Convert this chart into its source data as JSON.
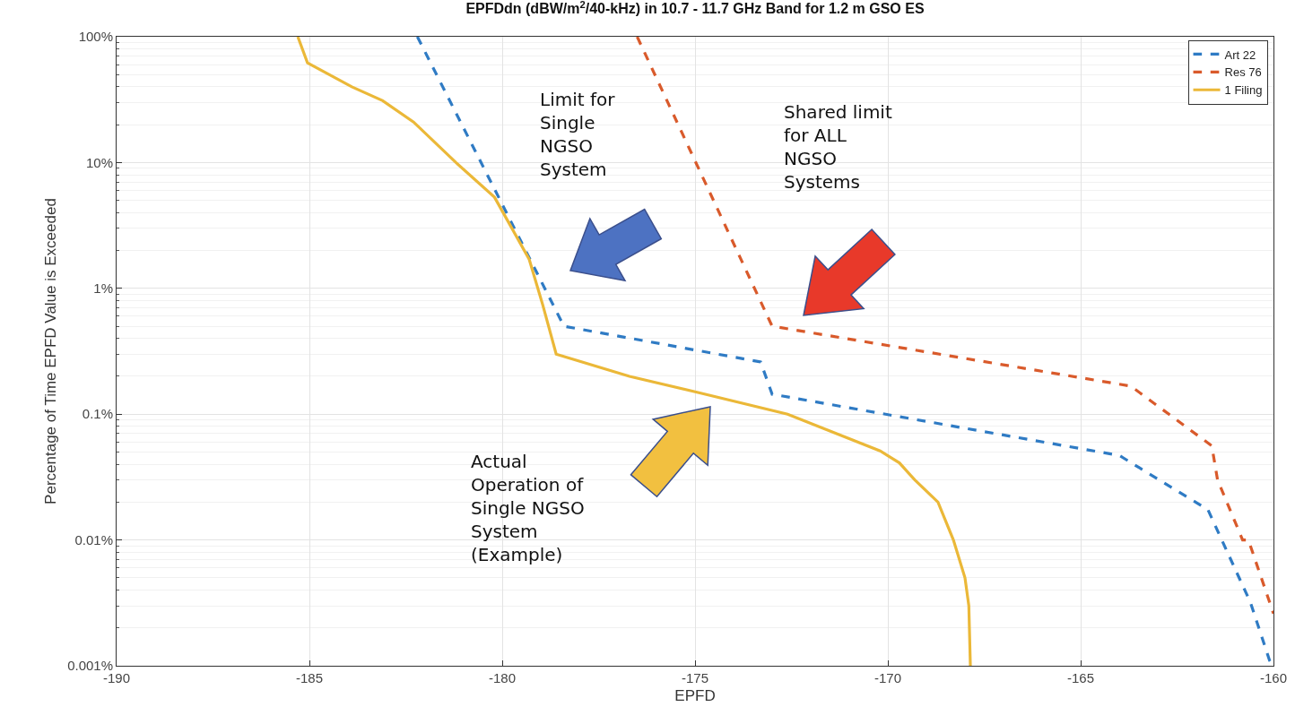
{
  "chart_data": {
    "type": "line",
    "title": "EPFDdn (dBW/m$^{2}$/40-kHz) in 10.7 - 11.7 GHz Band for 1.2 m GSO ES",
    "xlabel": "EPFD",
    "ylabel": "Percentage of Time EPFD Value is Exceeded",
    "xlim": [
      -190,
      -160
    ],
    "xticks": [
      -190,
      -185,
      -180,
      -175,
      -170,
      -165,
      -160
    ],
    "ylim": [
      0.001,
      100
    ],
    "yticks": [
      {
        "value": 0.001,
        "label": "0.001%"
      },
      {
        "value": 0.01,
        "label": "0.01%"
      },
      {
        "value": 0.1,
        "label": "0.1%"
      },
      {
        "value": 1,
        "label": "1%"
      },
      {
        "value": 10,
        "label": "10%"
      },
      {
        "value": 100,
        "label": "100%"
      }
    ],
    "log": "y",
    "grid": true,
    "legend": "top right",
    "marker": "none",
    "series": [
      {
        "name": "Art 22",
        "color": "#2f7bc4",
        "line_style": "dashed",
        "x": [
          -182.2,
          -178.4,
          -173.3,
          -173.0,
          -164.0,
          -161.7,
          -160.6,
          -160.1,
          -160.0
        ],
        "values": [
          100,
          0.5,
          0.26,
          0.144,
          0.047,
          0.0174,
          0.0032,
          0.0011,
          0.001
        ]
      },
      {
        "name": "Res 76",
        "color": "#d95a2b",
        "line_style": "dashed",
        "x": [
          -176.5,
          -173.0,
          -163.7,
          -161.6,
          -161.45,
          -160.8,
          -160.65,
          -160.0
        ],
        "values": [
          100,
          0.5,
          0.167,
          0.056,
          0.03,
          0.01,
          0.01,
          0.0026
        ]
      },
      {
        "name": "1 Filing",
        "color": "#ebb838",
        "line_style": "solid",
        "x": [
          -185.3,
          -185.05,
          -183.9,
          -183.1,
          -182.3,
          -181.2,
          -180.2,
          -179.8,
          -179.3,
          -178.95,
          -178.6,
          -176.7,
          -174.9,
          -172.6,
          -170.2,
          -169.7,
          -169.3,
          -168.7,
          -168.3,
          -168.0,
          -167.9,
          -167.86
        ],
        "values": [
          100,
          62,
          40,
          31,
          21,
          10,
          5.3,
          3.2,
          1.7,
          0.74,
          0.3,
          0.2,
          0.148,
          0.1,
          0.051,
          0.041,
          0.03,
          0.02,
          0.01,
          0.005,
          0.003,
          0.001
        ]
      }
    ],
    "annotations": [
      "Limit for\nSingle\nNGSO\nSystem",
      "Shared limit\nfor ALL\nNGSO\nSystems",
      "Actual\nOperation of\nSingle NGSO\nSystem\n(Example)"
    ]
  }
}
